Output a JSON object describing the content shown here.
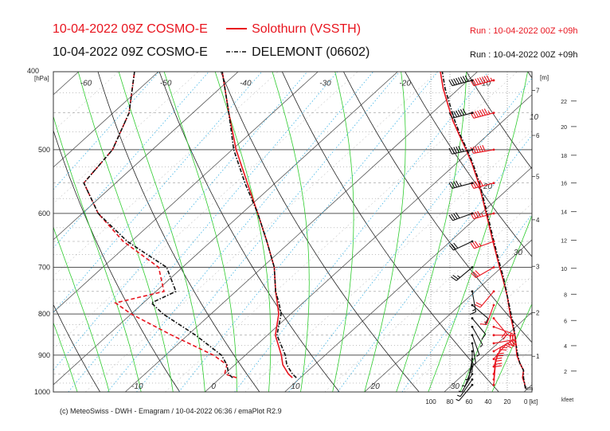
{
  "header": {
    "line1_model": "10-04-2022 09Z COSMO-E",
    "line1_station": "Solothurn (VSSTH)",
    "line1_run": "Run : 10-04-2022 00Z +09h",
    "line2_model": "10-04-2022 09Z COSMO-E",
    "line2_station": "DELEMONT (06602)",
    "line2_run": "Run : 10-04-2022 00Z +09h"
  },
  "footer": "(c) MeteoSwiss - DWH - Emagram / 10-04-2022  06:36 / emaPlot R2.9",
  "colors": {
    "solothurn": "#e8141e",
    "delemont": "#111111",
    "dry_adiabat": "#222222",
    "moist_adiabat": "#2ecc2e",
    "mixing_ratio": "#3fb4e6",
    "isotherm": "#888888"
  },
  "chart_data": {
    "type": "line",
    "title": "Emagram",
    "ylabel": "[hPa]",
    "ylim": [
      1000,
      400
    ],
    "y_scale": "log",
    "pressure_ticks": [
      "400",
      "500",
      "600",
      "700",
      "800",
      "900",
      "1000"
    ],
    "temperature_labels": [
      "-60",
      "-50",
      "-40",
      "-30",
      "-20",
      "-10",
      "0",
      "10",
      "20",
      "30",
      "-60",
      "-50",
      "-40",
      "-30",
      "-20",
      "-10",
      "0",
      "10",
      "20",
      "30"
    ],
    "xlim_surface_c": [
      -19,
      41
    ],
    "skew_c_per_decade": 111,
    "km_axis": {
      "label": "[m]",
      "ticks": [
        "7",
        "6",
        "5",
        "4",
        "3",
        "2",
        "1"
      ],
      "pressures": [
        422,
        480,
        540,
        611,
        698,
        797,
        903
      ]
    },
    "kt_axis": {
      "label": "0 [kt]",
      "ticks": [
        "100",
        "80",
        "60",
        "40",
        "20"
      ]
    },
    "km_label": "km",
    "kfeet_axis": {
      "label": "kfeet",
      "ticks": [
        "22",
        "20",
        "18",
        "16",
        "14",
        "12",
        "10",
        "8",
        "6",
        "4",
        "2"
      ],
      "pressures": [
        435,
        468,
        508,
        550,
        597,
        648,
        702,
        756,
        815,
        876,
        942
      ]
    },
    "wind_speed_profile_labels": [
      "10",
      "20",
      "30"
    ],
    "series": [
      {
        "name": "Solothurn (VSSTH)",
        "kind": "temperature",
        "style": "solid",
        "points": [
          [
            960,
            9.0
          ],
          [
            950,
            8.0
          ],
          [
            925,
            6.0
          ],
          [
            900,
            4.5
          ],
          [
            850,
            1.0
          ],
          [
            800,
            -1.5
          ],
          [
            775,
            -3.2
          ],
          [
            750,
            -5.0
          ],
          [
            700,
            -8.5
          ],
          [
            650,
            -13.0
          ],
          [
            600,
            -18.0
          ],
          [
            550,
            -23.5
          ],
          [
            500,
            -29.5
          ],
          [
            450,
            -35.5
          ],
          [
            400,
            -42.0
          ]
        ]
      },
      {
        "name": "Solothurn (VSSTH)",
        "kind": "dewpoint",
        "style": "dashed",
        "points": [
          [
            960,
            2.0
          ],
          [
            950,
            0.0
          ],
          [
            925,
            -1.0
          ],
          [
            900,
            -4.0
          ],
          [
            850,
            -12.0
          ],
          [
            800,
            -20.0
          ],
          [
            775,
            -23.5
          ],
          [
            750,
            -19.0
          ],
          [
            700,
            -23.0
          ],
          [
            650,
            -31.0
          ],
          [
            600,
            -38.0
          ],
          [
            550,
            -44.0
          ],
          [
            500,
            -45.0
          ],
          [
            450,
            -48.0
          ],
          [
            400,
            -53.0
          ]
        ]
      },
      {
        "name": "DELEMONT (06602)",
        "kind": "temperature",
        "style": "dashdot",
        "points": [
          [
            960,
            9.5
          ],
          [
            950,
            8.5
          ],
          [
            925,
            6.5
          ],
          [
            900,
            5.0
          ],
          [
            850,
            1.2
          ],
          [
            800,
            -1.2
          ],
          [
            775,
            -3.0
          ],
          [
            750,
            -5.0
          ],
          [
            700,
            -8.5
          ],
          [
            650,
            -13.0
          ],
          [
            600,
            -18.0
          ],
          [
            550,
            -23.8
          ],
          [
            500,
            -29.8
          ],
          [
            450,
            -35.5
          ],
          [
            400,
            -42.0
          ]
        ]
      },
      {
        "name": "DELEMONT (06602)",
        "kind": "dewpoint",
        "style": "dashdot",
        "points": [
          [
            960,
            1.5
          ],
          [
            950,
            0.5
          ],
          [
            925,
            -1.0
          ],
          [
            900,
            -3.0
          ],
          [
            850,
            -9.0
          ],
          [
            800,
            -16.0
          ],
          [
            775,
            -19.0
          ],
          [
            750,
            -17.5
          ],
          [
            700,
            -22.0
          ],
          [
            650,
            -30.5
          ],
          [
            600,
            -38.0
          ],
          [
            550,
            -44.0
          ],
          [
            500,
            -45.0
          ],
          [
            450,
            -48.0
          ],
          [
            400,
            -53.0
          ]
        ]
      },
      {
        "name": "Solothurn (VSSTH)",
        "kind": "wind_speed_profile",
        "style": "solid",
        "units": "kt",
        "points": [
          [
            990,
            1
          ],
          [
            975,
            2
          ],
          [
            960,
            4
          ],
          [
            940,
            3
          ],
          [
            920,
            7
          ],
          [
            900,
            10
          ],
          [
            870,
            11
          ],
          [
            850,
            12
          ],
          [
            820,
            15
          ],
          [
            800,
            17
          ],
          [
            760,
            20
          ],
          [
            720,
            25
          ],
          [
            700,
            28
          ],
          [
            650,
            35
          ],
          [
            600,
            42
          ],
          [
            550,
            50
          ],
          [
            520,
            57
          ],
          [
            500,
            63
          ],
          [
            480,
            70
          ],
          [
            460,
            77
          ],
          [
            440,
            82
          ],
          [
            420,
            87
          ],
          [
            400,
            90
          ]
        ]
      },
      {
        "name": "DELEMONT (06602)",
        "kind": "wind_speed_profile",
        "style": "dashdot",
        "units": "kt",
        "points": [
          [
            990,
            1
          ],
          [
            975,
            2
          ],
          [
            960,
            3
          ],
          [
            940,
            3
          ],
          [
            920,
            7
          ],
          [
            900,
            9
          ],
          [
            870,
            11
          ],
          [
            850,
            12
          ],
          [
            820,
            14
          ],
          [
            800,
            16
          ],
          [
            760,
            20
          ],
          [
            720,
            24
          ],
          [
            700,
            27
          ],
          [
            650,
            34
          ],
          [
            600,
            41
          ],
          [
            550,
            49
          ],
          [
            520,
            56
          ],
          [
            500,
            62
          ],
          [
            480,
            69
          ],
          [
            460,
            75
          ],
          [
            440,
            80
          ],
          [
            420,
            85
          ],
          [
            400,
            88
          ]
        ]
      }
    ],
    "wind_barbs": [
      {
        "name": "Solothurn (VSSTH)",
        "barbs": [
          {
            "p": 980,
            "dir": 5,
            "kt": 20
          },
          {
            "p": 965,
            "dir": 5,
            "kt": 20
          },
          {
            "p": 950,
            "dir": 10,
            "kt": 20
          },
          {
            "p": 930,
            "dir": 20,
            "kt": 20
          },
          {
            "p": 910,
            "dir": 40,
            "kt": 20
          },
          {
            "p": 890,
            "dir": 60,
            "kt": 25
          },
          {
            "p": 870,
            "dir": 80,
            "kt": 25
          },
          {
            "p": 850,
            "dir": 90,
            "kt": 25
          },
          {
            "p": 830,
            "dir": 110,
            "kt": 20
          },
          {
            "p": 810,
            "dir": 140,
            "kt": 20
          },
          {
            "p": 780,
            "dir": 200,
            "kt": 15
          },
          {
            "p": 750,
            "dir": 220,
            "kt": 20
          },
          {
            "p": 700,
            "dir": 240,
            "kt": 30
          },
          {
            "p": 650,
            "dir": 250,
            "kt": 35
          },
          {
            "p": 600,
            "dir": 255,
            "kt": 45
          },
          {
            "p": 550,
            "dir": 255,
            "kt": 50
          },
          {
            "p": 500,
            "dir": 260,
            "kt": 60
          },
          {
            "p": 450,
            "dir": 255,
            "kt": 75
          },
          {
            "p": 410,
            "dir": 255,
            "kt": 85
          }
        ]
      },
      {
        "name": "DELEMONT (06602)",
        "barbs": [
          {
            "p": 980,
            "dir": 220,
            "kt": 5
          },
          {
            "p": 965,
            "dir": 215,
            "kt": 5
          },
          {
            "p": 950,
            "dir": 210,
            "kt": 5
          },
          {
            "p": 930,
            "dir": 200,
            "kt": 5
          },
          {
            "p": 910,
            "dir": 190,
            "kt": 5
          },
          {
            "p": 890,
            "dir": 180,
            "kt": 5
          },
          {
            "p": 870,
            "dir": 170,
            "kt": 5
          },
          {
            "p": 850,
            "dir": 160,
            "kt": 5
          },
          {
            "p": 830,
            "dir": 150,
            "kt": 5
          },
          {
            "p": 810,
            "dir": 140,
            "kt": 10
          },
          {
            "p": 780,
            "dir": 130,
            "kt": 10
          },
          {
            "p": 750,
            "dir": 170,
            "kt": 15
          },
          {
            "p": 700,
            "dir": 230,
            "kt": 25
          },
          {
            "p": 650,
            "dir": 245,
            "kt": 30
          },
          {
            "p": 600,
            "dir": 250,
            "kt": 40
          },
          {
            "p": 550,
            "dir": 255,
            "kt": 45
          },
          {
            "p": 500,
            "dir": 258,
            "kt": 55
          },
          {
            "p": 450,
            "dir": 255,
            "kt": 70
          },
          {
            "p": 410,
            "dir": 255,
            "kt": 80
          }
        ]
      }
    ]
  }
}
